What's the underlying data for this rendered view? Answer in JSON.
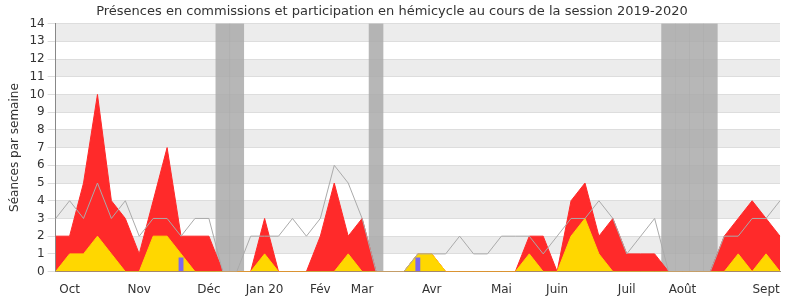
{
  "chart_data": {
    "type": "line",
    "title": "Présences en commissions et participation en hémicycle au cours de la session 2019-2020",
    "y_label": "Séances par semaine",
    "categories": [
      null,
      "Oct",
      null,
      null,
      null,
      null,
      "Nov",
      null,
      null,
      null,
      null,
      "Déc",
      null,
      null,
      null,
      "Jan 20",
      null,
      null,
      null,
      "Fév",
      null,
      null,
      "Mar",
      null,
      null,
      null,
      null,
      "Avr",
      null,
      null,
      null,
      null,
      "Mai",
      null,
      null,
      null,
      "Juin",
      null,
      null,
      null,
      null,
      "Juil",
      null,
      null,
      null,
      "Août",
      null,
      null,
      null,
      null,
      null,
      "Sept",
      null
    ],
    "series": [
      {
        "type": "bar",
        "color": "#aaaaaa",
        "values": [
          null,
          null,
          null,
          null,
          null,
          null,
          null,
          null,
          null,
          null,
          null,
          null,
          14,
          14,
          null,
          null,
          null,
          null,
          null,
          null,
          null,
          null,
          null,
          14,
          null,
          null,
          null,
          null,
          null,
          null,
          null,
          null,
          null,
          null,
          null,
          null,
          null,
          null,
          null,
          null,
          null,
          null,
          null,
          null,
          14,
          14,
          14,
          14,
          null,
          null,
          null,
          null,
          null
        ]
      },
      {
        "type": "area",
        "color": "#ff2a2a",
        "values": [
          2,
          2,
          5,
          10,
          4,
          3,
          1,
          4,
          7,
          2,
          2,
          2,
          0,
          0,
          0,
          3,
          0,
          0,
          0,
          2,
          5,
          2,
          3,
          0,
          0,
          0,
          1,
          1,
          0,
          0,
          0,
          0,
          0,
          0,
          2,
          2,
          0,
          4,
          5,
          2,
          3,
          1,
          1,
          1,
          0,
          0,
          0,
          0,
          2,
          3,
          4,
          3,
          2
        ]
      },
      {
        "type": "area",
        "color": "#ffd700",
        "values": [
          0,
          1,
          1,
          2,
          1,
          0,
          0,
          2,
          2,
          1,
          0,
          0,
          0,
          0,
          0,
          1,
          0,
          0,
          0,
          0,
          0,
          1,
          0,
          0,
          0,
          0,
          1,
          1,
          0,
          0,
          0,
          0,
          0,
          0,
          1,
          0,
          0,
          2,
          3,
          1,
          0,
          0,
          0,
          0,
          0,
          0,
          0,
          0,
          0,
          1,
          0,
          1,
          0
        ]
      },
      {
        "type": "line",
        "color": "#aaaaaa",
        "values": [
          3,
          4,
          3,
          5,
          3,
          4,
          2,
          3,
          3,
          2,
          3,
          3,
          0,
          0,
          2,
          2,
          2,
          3,
          2,
          3,
          6,
          5,
          3,
          0,
          0,
          0,
          1,
          1,
          1,
          2,
          1,
          1,
          2,
          2,
          2,
          1,
          2,
          3,
          3,
          4,
          3,
          1,
          2,
          3,
          0,
          0,
          0,
          0,
          2,
          2,
          3,
          3,
          4
        ]
      },
      {
        "type": "bar",
        "color": "#7b68ee",
        "values": [
          null,
          null,
          null,
          null,
          null,
          null,
          null,
          null,
          null,
          0.8,
          null,
          null,
          null,
          null,
          null,
          null,
          null,
          null,
          null,
          null,
          null,
          null,
          null,
          null,
          null,
          null,
          0.8,
          null,
          null,
          null,
          null,
          null,
          null,
          null,
          null,
          null,
          null,
          null,
          null,
          null,
          null,
          null,
          null,
          null,
          null,
          null,
          null,
          null,
          null,
          null,
          null,
          null,
          null
        ]
      }
    ],
    "ylim": [
      0,
      14
    ],
    "yticks": [
      0,
      1,
      2,
      3,
      4,
      5,
      6,
      7,
      8,
      9,
      10,
      11,
      12,
      13,
      14
    ],
    "grid": true
  }
}
